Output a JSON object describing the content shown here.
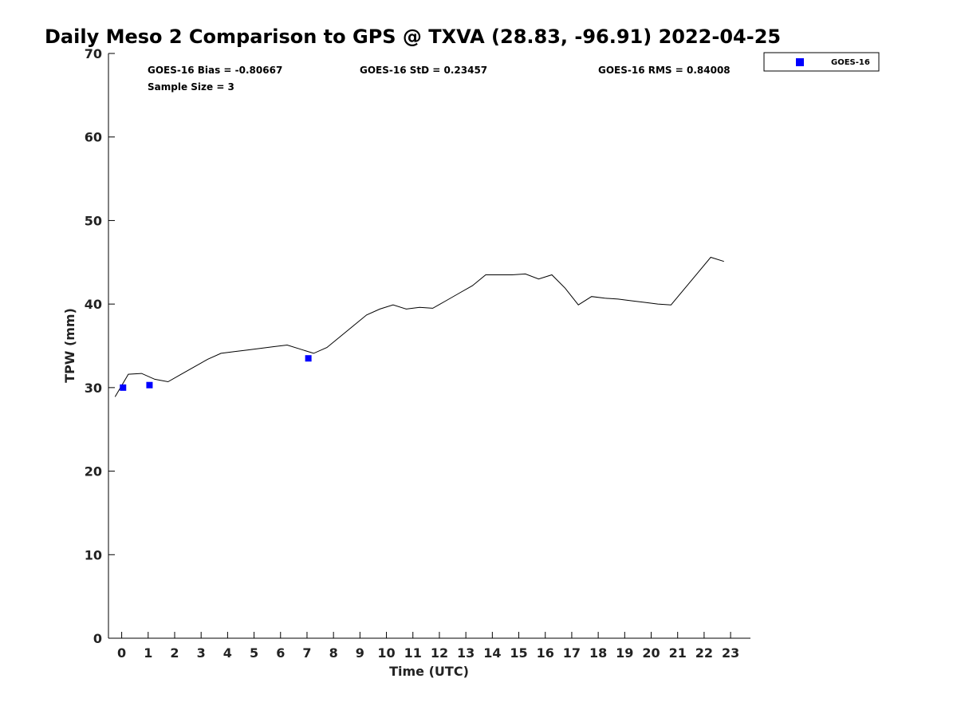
{
  "chart_data": {
    "type": "line",
    "title": "Daily Meso 2 Comparison to GPS @ TXVA (28.83, -96.91) 2022-04-25",
    "xlabel": "Time (UTC)",
    "ylabel": "TPW (mm)",
    "xlim": [
      -0.5,
      23.75
    ],
    "ylim": [
      0,
      70
    ],
    "x_ticks": [
      0,
      1,
      2,
      3,
      4,
      5,
      6,
      7,
      8,
      9,
      10,
      11,
      12,
      13,
      14,
      15,
      16,
      17,
      18,
      19,
      20,
      21,
      22,
      23
    ],
    "y_ticks": [
      0,
      10,
      20,
      30,
      40,
      50,
      60,
      70
    ],
    "grid": false,
    "legend_position": "top-right-outside",
    "stats": {
      "bias": "GOES-16 Bias = -0.80667",
      "std": "GOES-16 StD = 0.23457",
      "rms": "GOES-16 RMS = 0.84008",
      "sample_size": "Sample Size = 3"
    },
    "line_color": "#000000",
    "gps_line": {
      "x": [
        -0.25,
        0.25,
        0.75,
        1.25,
        1.75,
        2.25,
        2.75,
        3.25,
        3.75,
        4.25,
        4.75,
        5.25,
        5.75,
        6.25,
        6.75,
        7.25,
        7.75,
        8.25,
        8.75,
        9.25,
        9.75,
        10.25,
        10.75,
        11.25,
        11.75,
        12.25,
        12.75,
        13.25,
        13.75,
        14.25,
        14.75,
        15.25,
        15.75,
        16.25,
        16.75,
        17.25,
        17.75,
        18.25,
        18.75,
        19.25,
        19.75,
        20.25,
        20.75,
        21.25,
        21.75,
        22.25,
        22.75
      ],
      "y": [
        28.9,
        31.6,
        31.7,
        31.0,
        30.7,
        31.6,
        32.5,
        33.4,
        34.1,
        34.3,
        34.5,
        34.7,
        34.9,
        35.1,
        34.6,
        34.1,
        34.8,
        36.1,
        37.4,
        38.7,
        39.4,
        39.9,
        39.4,
        39.6,
        39.5,
        40.4,
        41.3,
        42.2,
        43.5,
        43.5,
        43.5,
        43.6,
        43.0,
        43.5,
        41.9,
        39.9,
        40.9,
        40.7,
        40.6,
        40.4,
        40.2,
        40.0,
        39.9,
        41.8,
        43.7,
        45.6,
        45.1
      ]
    },
    "series": [
      {
        "name": "GOES-16",
        "color": "#0000ff",
        "marker": "square",
        "x": [
          0.05,
          1.05,
          7.05
        ],
        "y": [
          30.0,
          30.3,
          33.5
        ]
      }
    ]
  }
}
